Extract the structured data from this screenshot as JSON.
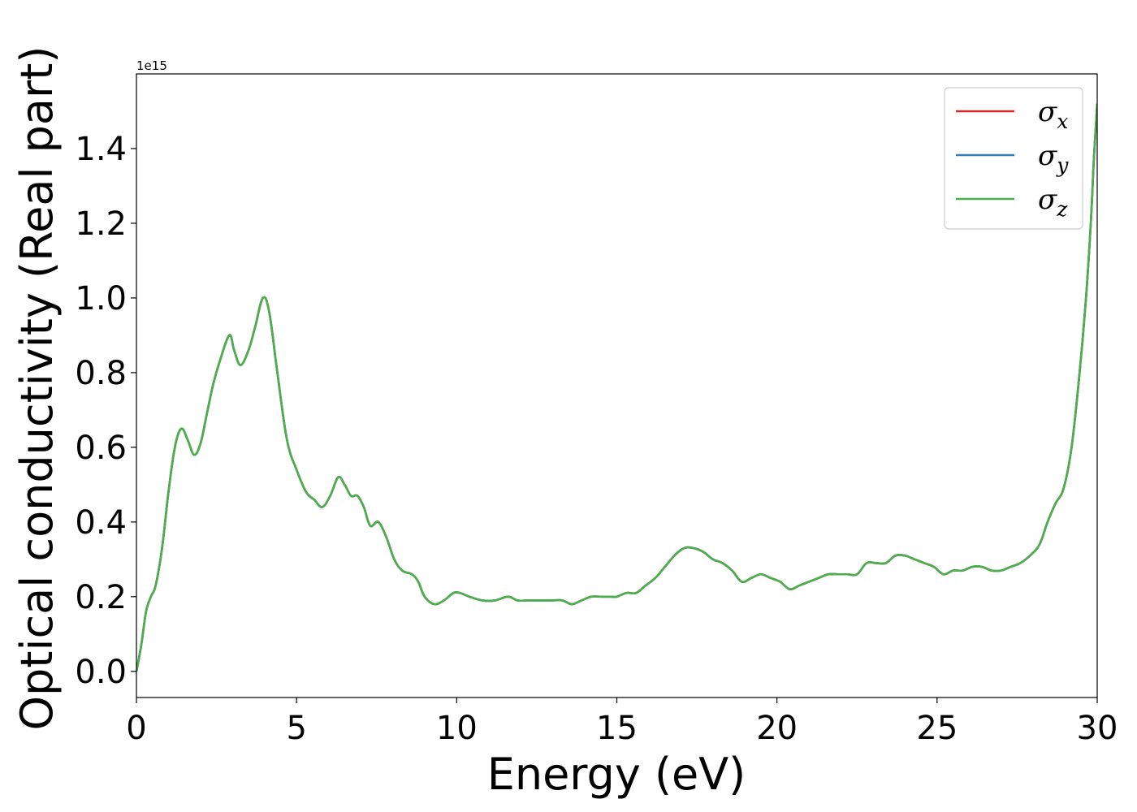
{
  "chart_data": {
    "type": "line",
    "xlabel": "Energy (eV)",
    "ylabel": "Optical conductivity (Real part)",
    "y_offset_label": "1e15",
    "xlim": [
      0,
      30
    ],
    "ylim": [
      -0.07,
      1.6
    ],
    "x_ticks": [
      0,
      5,
      10,
      15,
      20,
      25,
      30
    ],
    "x_tick_labels": [
      "0",
      "5",
      "10",
      "15",
      "20",
      "25",
      "30"
    ],
    "y_ticks": [
      0.0,
      0.2,
      0.4,
      0.6,
      0.8,
      1.0,
      1.2,
      1.4
    ],
    "y_tick_labels": [
      "0.0",
      "0.2",
      "0.4",
      "0.6",
      "0.8",
      "1.0",
      "1.2",
      "1.4"
    ],
    "grid": false,
    "legend_position": "top-right",
    "series": [
      {
        "name": "σx",
        "legend_base": "σ",
        "legend_sub": "x",
        "color": "#d62728",
        "x": [
          0,
          0.15,
          0.3,
          0.45,
          0.6,
          0.8,
          1.0,
          1.2,
          1.4,
          1.6,
          1.8,
          2.0,
          2.2,
          2.4,
          2.6,
          2.9,
          3.05,
          3.25,
          3.5,
          3.7,
          3.95,
          4.15,
          4.4,
          4.7,
          5.0,
          5.3,
          5.55,
          5.8,
          6.05,
          6.3,
          6.5,
          6.7,
          6.9,
          7.1,
          7.3,
          7.55,
          7.8,
          8.05,
          8.3,
          8.6,
          8.8,
          9.0,
          9.3,
          9.6,
          9.9,
          10.1,
          10.4,
          10.8,
          11.2,
          11.6,
          11.9,
          12.2,
          12.6,
          13.0,
          13.3,
          13.6,
          13.9,
          14.2,
          14.5,
          14.8,
          15.0,
          15.3,
          15.6,
          15.9,
          16.2,
          16.5,
          16.8,
          17.1,
          17.4,
          17.7,
          18.0,
          18.3,
          18.6,
          18.9,
          19.2,
          19.5,
          19.8,
          20.1,
          20.4,
          20.7,
          21.0,
          21.3,
          21.6,
          21.9,
          22.2,
          22.5,
          22.8,
          23.1,
          23.4,
          23.7,
          24.0,
          24.3,
          24.6,
          24.9,
          25.2,
          25.5,
          25.8,
          26.1,
          26.4,
          26.7,
          27.0,
          27.3,
          27.6,
          27.9,
          28.2,
          28.45,
          28.7,
          28.95,
          29.2,
          29.45,
          29.65,
          29.8,
          29.9,
          30.0
        ],
        "y": [
          0.0,
          0.07,
          0.16,
          0.2,
          0.23,
          0.33,
          0.48,
          0.6,
          0.65,
          0.62,
          0.58,
          0.61,
          0.69,
          0.77,
          0.83,
          0.9,
          0.86,
          0.82,
          0.86,
          0.92,
          1.0,
          0.96,
          0.8,
          0.62,
          0.54,
          0.48,
          0.46,
          0.44,
          0.47,
          0.52,
          0.5,
          0.47,
          0.47,
          0.44,
          0.39,
          0.4,
          0.36,
          0.3,
          0.27,
          0.26,
          0.24,
          0.2,
          0.18,
          0.19,
          0.21,
          0.21,
          0.2,
          0.19,
          0.19,
          0.2,
          0.19,
          0.19,
          0.19,
          0.19,
          0.19,
          0.18,
          0.19,
          0.2,
          0.2,
          0.2,
          0.2,
          0.21,
          0.21,
          0.23,
          0.25,
          0.28,
          0.31,
          0.33,
          0.33,
          0.32,
          0.3,
          0.29,
          0.27,
          0.24,
          0.25,
          0.26,
          0.25,
          0.24,
          0.22,
          0.23,
          0.24,
          0.25,
          0.26,
          0.26,
          0.26,
          0.26,
          0.29,
          0.29,
          0.29,
          0.31,
          0.31,
          0.3,
          0.29,
          0.28,
          0.26,
          0.27,
          0.27,
          0.28,
          0.28,
          0.27,
          0.27,
          0.28,
          0.29,
          0.31,
          0.34,
          0.4,
          0.45,
          0.49,
          0.6,
          0.8,
          1.0,
          1.2,
          1.38,
          1.52
        ]
      },
      {
        "name": "σy",
        "legend_base": "σ",
        "legend_sub": "y",
        "color": "#377eb8",
        "same_as": "σx"
      },
      {
        "name": "σz",
        "legend_base": "σ",
        "legend_sub": "z",
        "color": "#4daf4a",
        "same_as": "σx"
      }
    ]
  }
}
